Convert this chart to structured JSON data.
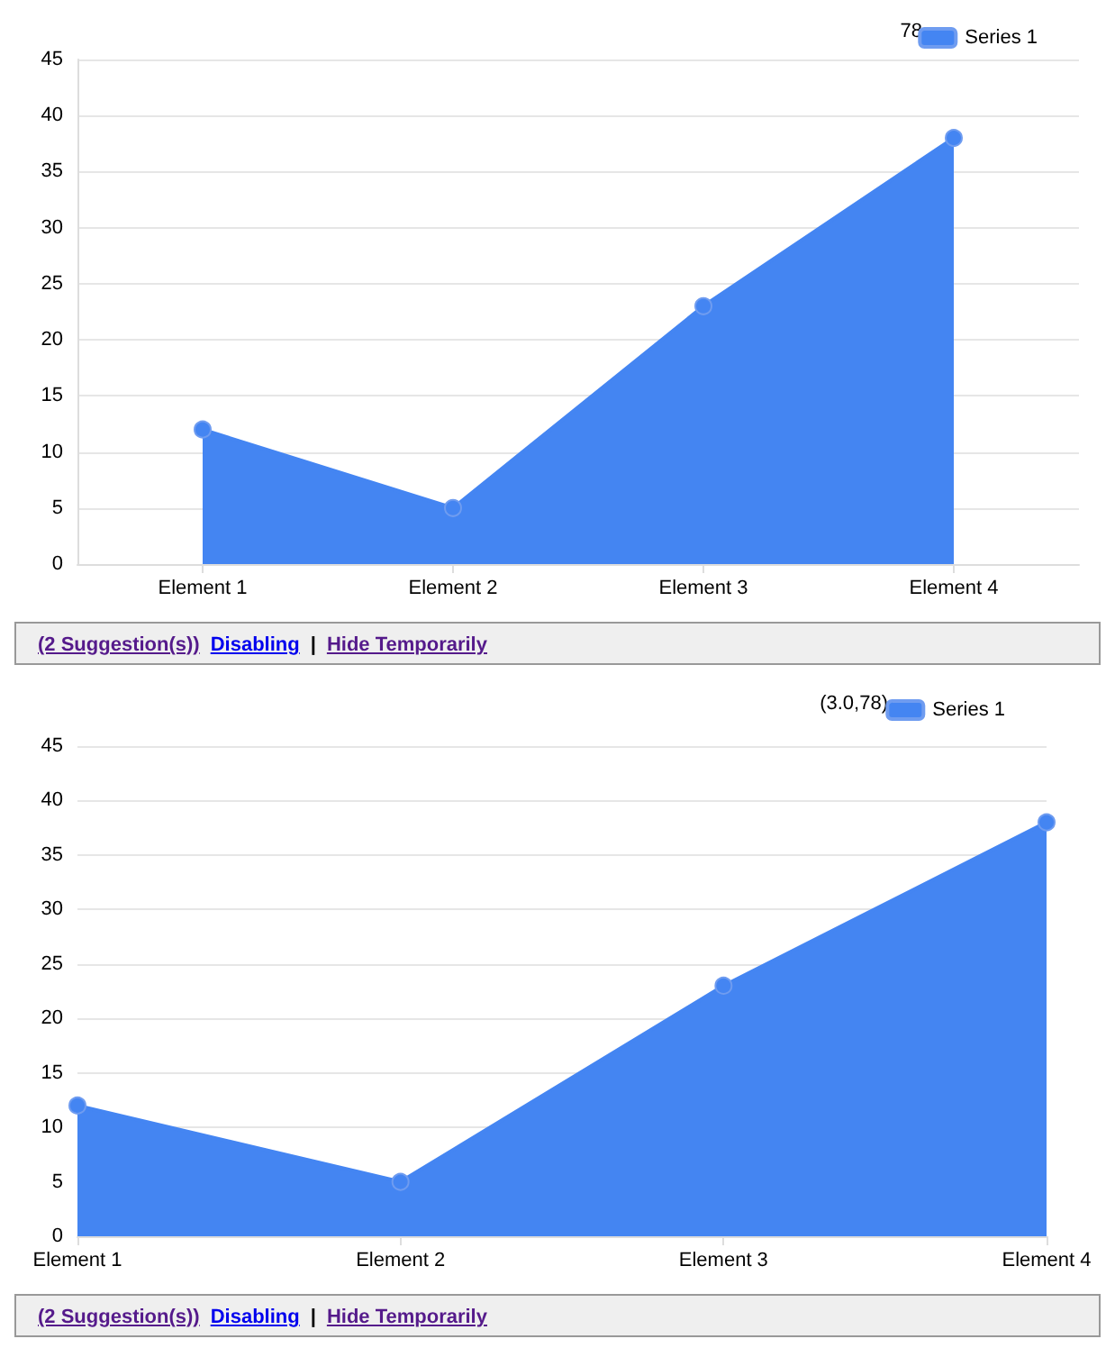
{
  "chart_data": [
    {
      "type": "area",
      "categories": [
        "Element 1",
        "Element 2",
        "Element 3",
        "Element 4"
      ],
      "series": [
        {
          "name": "Series 1",
          "color": "#4485f2",
          "values": [
            12,
            5,
            23,
            38
          ]
        }
      ],
      "ylim": [
        0,
        45
      ],
      "yticks": [
        0,
        5,
        10,
        15,
        20,
        25,
        30,
        35,
        40,
        45
      ],
      "grid": "y",
      "legend": "top right",
      "marker": "circle",
      "annotations": [
        "78",
        "(2 Suggestion(s))",
        "Disabling",
        "|",
        "Hide Temporarily"
      ]
    },
    {
      "type": "area",
      "categories": [
        "Element 1",
        "Element 2",
        "Element 3",
        "Element 4"
      ],
      "series": [
        {
          "name": "Series 1",
          "color": "#4485f2",
          "values": [
            12,
            5,
            23,
            38
          ]
        }
      ],
      "ylim": [
        0,
        45
      ],
      "yticks": [
        0,
        5,
        10,
        15,
        20,
        25,
        30,
        35,
        40,
        45
      ],
      "grid": "y",
      "legend": "top right",
      "marker": "circle",
      "annotations": [
        "(3.0,78)",
        "(2 Suggestion(s))",
        "Disabling",
        "|",
        "Hide Temporarily"
      ]
    }
  ]
}
